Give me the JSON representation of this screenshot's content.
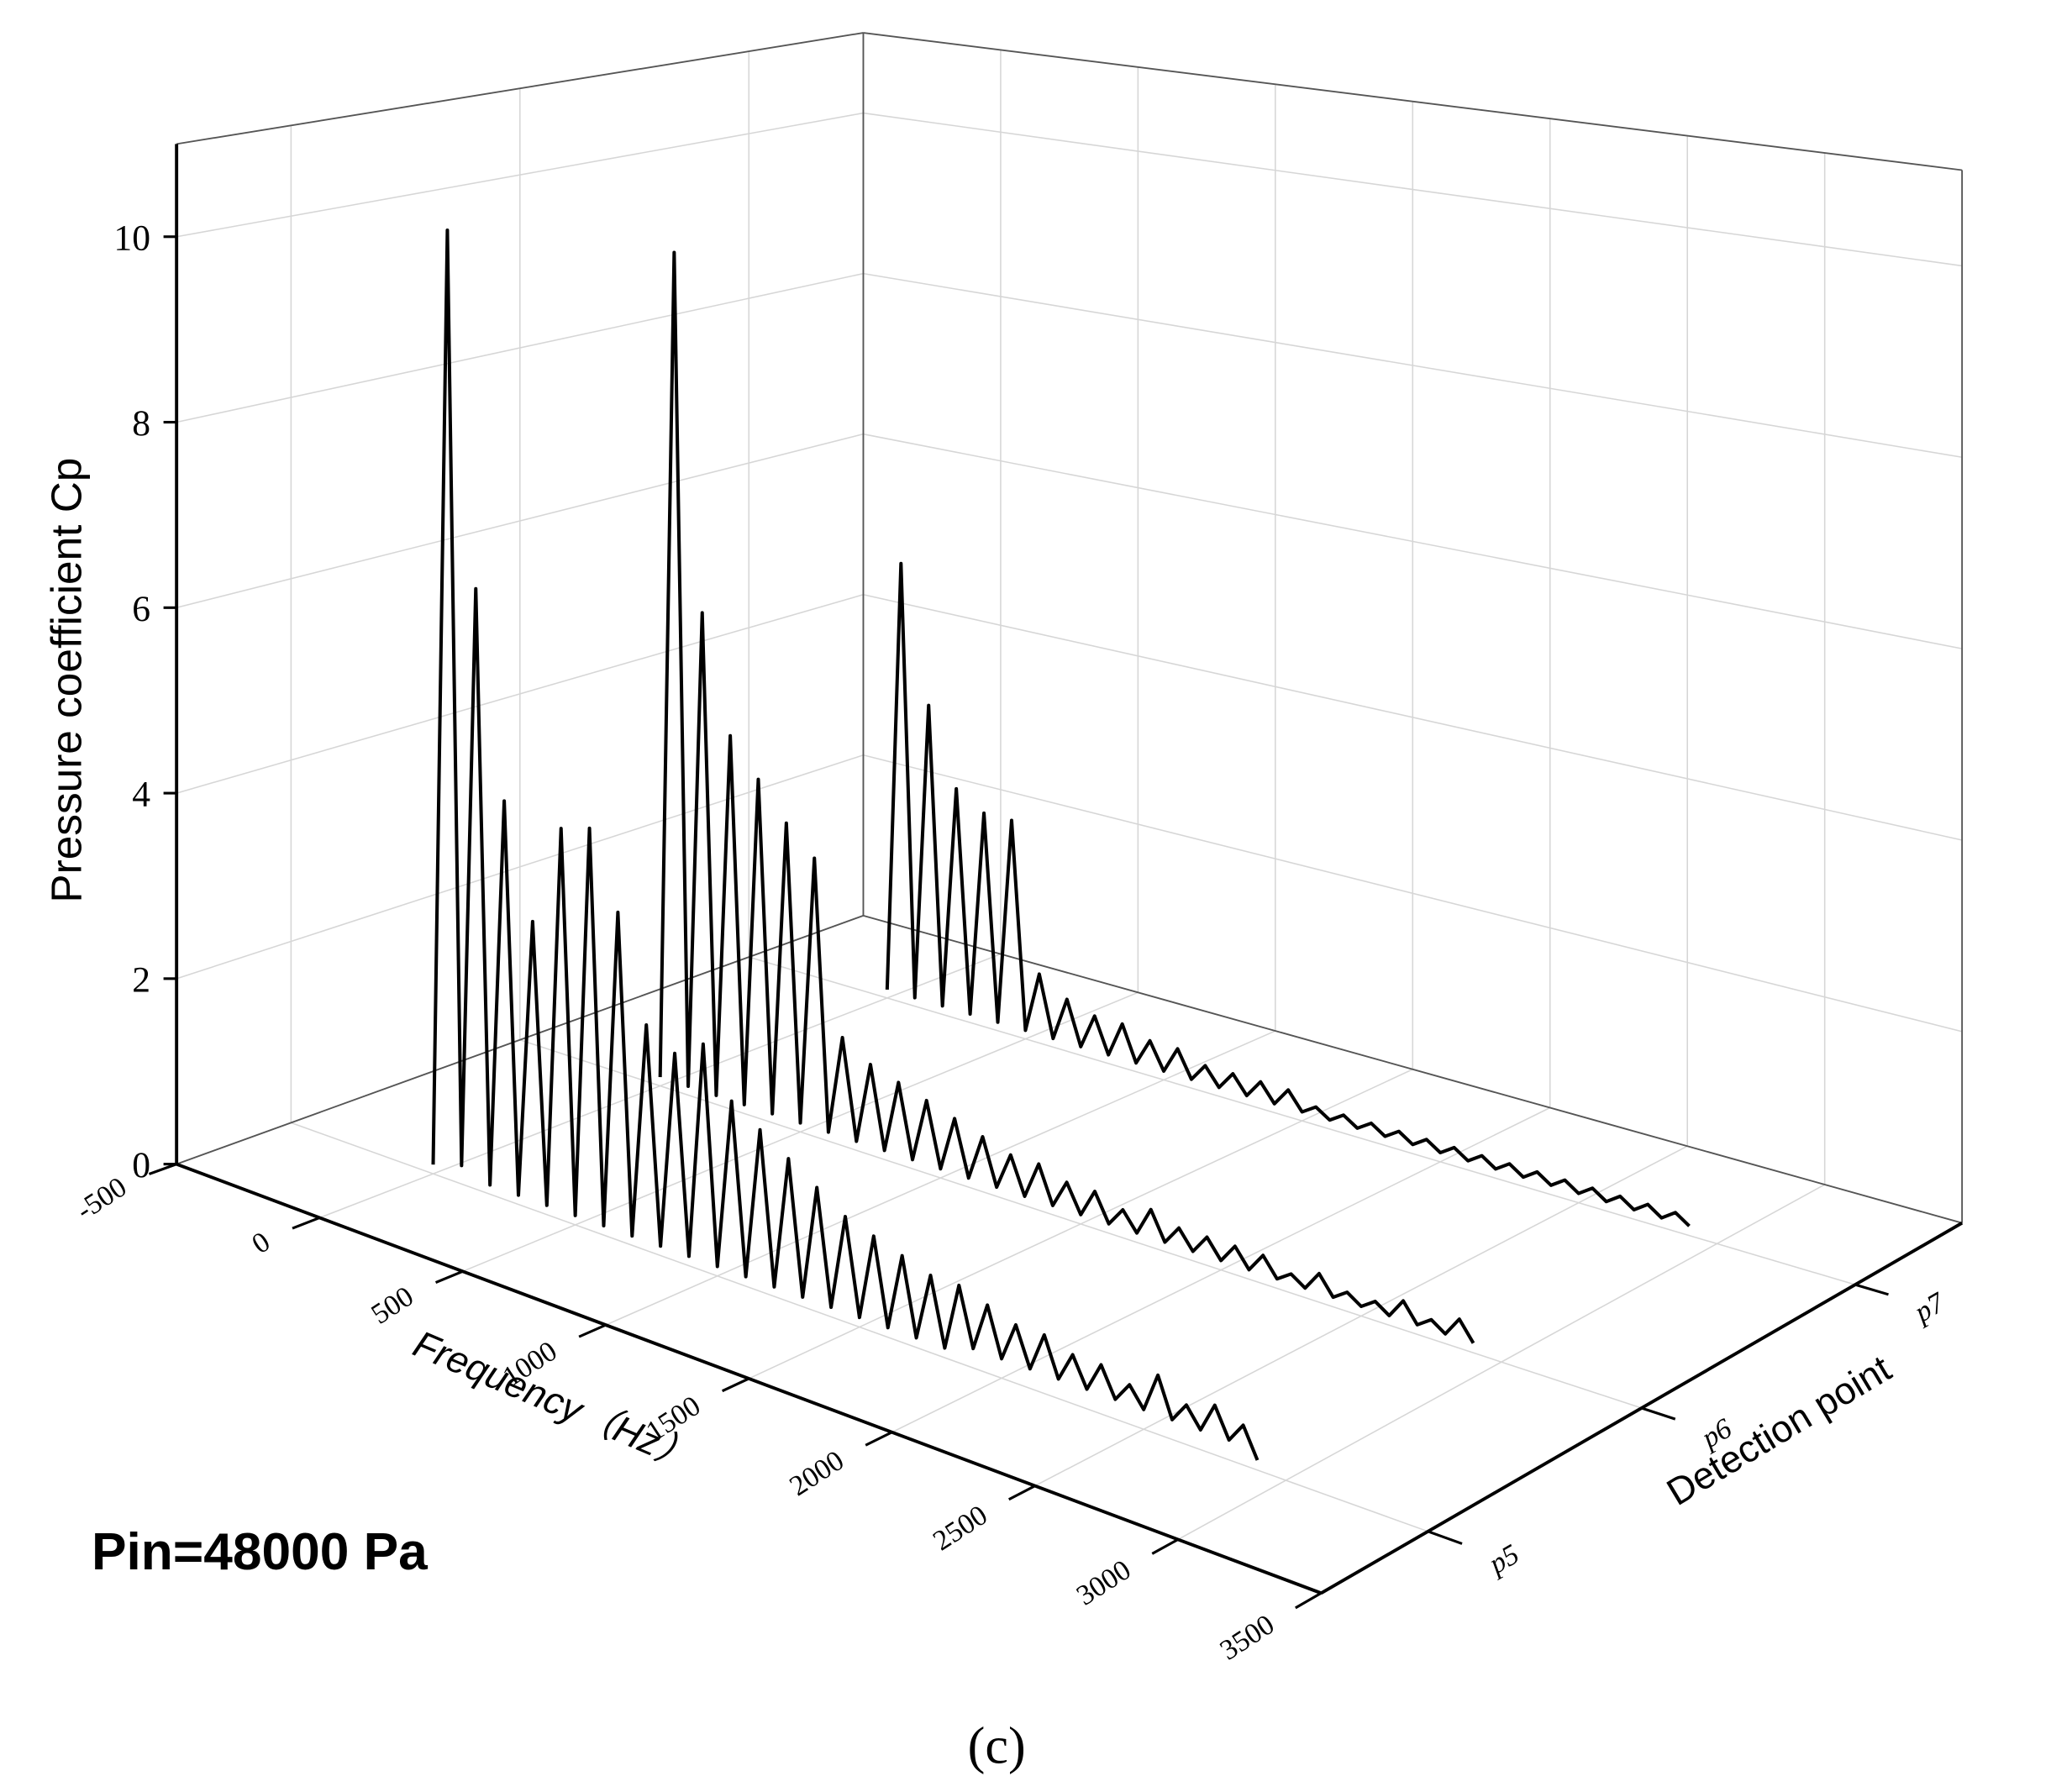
{
  "chart_data": {
    "type": "waterfall",
    "ylabel": "Pressure coefficient  Cp",
    "xlabel": "Frequency（Hz）",
    "zlabel": "Detection point",
    "annotation": "Pin=48000 Pa",
    "caption": "(c)",
    "xlim": [
      -500,
      3500
    ],
    "xticks": [
      -500,
      0,
      500,
      1000,
      1500,
      2000,
      2500,
      3000,
      3500
    ],
    "ylim": [
      0,
      11
    ],
    "yticks": [
      0,
      2,
      4,
      6,
      8,
      10
    ],
    "grid": true,
    "x": [
      0,
      50,
      100,
      150,
      200,
      250,
      300,
      350,
      400,
      450,
      500,
      550,
      600,
      650,
      700,
      750,
      800,
      850,
      900,
      950,
      1000,
      1050,
      1100,
      1150,
      1200,
      1250,
      1300,
      1350,
      1400,
      1450,
      1500,
      1550,
      1600,
      1650,
      1700,
      1750,
      1800,
      1850,
      1900,
      1950,
      2000,
      2050,
      2100,
      2150,
      2200,
      2250,
      2300,
      2350,
      2400,
      2450,
      2500,
      2550,
      2600,
      2650,
      2700,
      2750,
      2800,
      2850,
      2900
    ],
    "series": [
      {
        "name": "p5",
        "color": "#000000",
        "values": [
          0.1,
          10.3,
          0.2,
          6.5,
          0.1,
          4.3,
          0.1,
          3.1,
          0.1,
          4.2,
          0.1,
          4.3,
          0.1,
          3.5,
          0.1,
          2.4,
          0.1,
          2.2,
          0.1,
          2.4,
          0.1,
          1.9,
          0.1,
          1.7,
          0.1,
          1.5,
          0.1,
          1.3,
          0.1,
          1.1,
          0.1,
          1.0,
          0.1,
          0.9,
          0.1,
          0.8,
          0.1,
          0.8,
          0.2,
          0.7,
          0.2,
          0.6,
          0.2,
          0.6,
          0.2,
          0.5,
          0.2,
          0.5,
          0.2,
          0.4,
          0.2,
          0.6,
          0.2,
          0.4,
          0.2,
          0.5,
          0.2,
          0.4,
          0.1
        ]
      },
      {
        "name": "p6",
        "color": "#000000",
        "values": [
          0.1,
          9.5,
          0.1,
          5.5,
          0.1,
          4.2,
          0.1,
          3.8,
          0.1,
          3.4,
          0.1,
          3.1,
          0.1,
          1.2,
          0.1,
          1.0,
          0.1,
          0.9,
          0.1,
          0.8,
          0.1,
          0.7,
          0.1,
          0.6,
          0.1,
          0.5,
          0.1,
          0.5,
          0.1,
          0.4,
          0.1,
          0.4,
          0.1,
          0.3,
          0.1,
          0.4,
          0.1,
          0.3,
          0.1,
          0.3,
          0.1,
          0.3,
          0.1,
          0.3,
          0.1,
          0.2,
          0.1,
          0.3,
          0.1,
          0.2,
          0.1,
          0.2,
          0.1,
          0.3,
          0.1,
          0.2,
          0.1,
          0.3,
          0.1
        ]
      },
      {
        "name": "p7",
        "color": "#000000",
        "values": [
          0.1,
          5.2,
          0.1,
          3.6,
          0.1,
          2.7,
          0.1,
          2.5,
          0.1,
          2.5,
          0.1,
          0.8,
          0.1,
          0.6,
          0.1,
          0.5,
          0.1,
          0.5,
          0.1,
          0.4,
          0.1,
          0.4,
          0.1,
          0.3,
          0.1,
          0.3,
          0.1,
          0.3,
          0.1,
          0.3,
          0.1,
          0.2,
          0.1,
          0.2,
          0.1,
          0.2,
          0.1,
          0.2,
          0.1,
          0.2,
          0.1,
          0.2,
          0.1,
          0.2,
          0.1,
          0.2,
          0.1,
          0.2,
          0.1,
          0.2,
          0.1,
          0.2,
          0.1,
          0.2,
          0.1,
          0.2,
          0.1,
          0.2,
          0.1
        ]
      }
    ]
  }
}
